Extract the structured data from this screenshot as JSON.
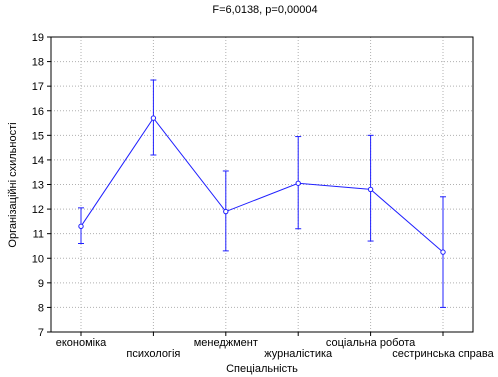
{
  "chart_data": {
    "type": "line",
    "title": "F=6,0138, p=0,00004",
    "xlabel": "Спеціальність",
    "ylabel": "Організаційні схильності",
    "ylim": [
      7,
      19
    ],
    "yticks": [
      7,
      8,
      9,
      10,
      11,
      12,
      13,
      14,
      15,
      16,
      17,
      18,
      19
    ],
    "grid": true,
    "categories": [
      "економіка",
      "психологія",
      "менеджмент",
      "журналістика",
      "соціальна робота",
      "сестринська справа"
    ],
    "series": [
      {
        "values": [
          11.3,
          15.7,
          11.9,
          13.05,
          12.8,
          10.25
        ],
        "lower": [
          10.6,
          14.2,
          10.3,
          11.2,
          10.7,
          8.0
        ],
        "upper": [
          12.05,
          17.25,
          13.55,
          14.95,
          15.0,
          12.5
        ]
      }
    ],
    "colors": {
      "series": "#2020ff",
      "grid": "#b0b0b0",
      "axis": "#000000"
    }
  }
}
